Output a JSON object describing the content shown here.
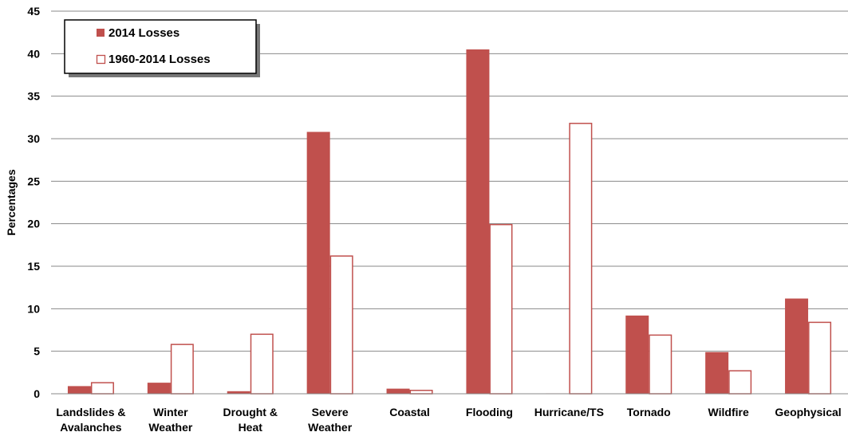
{
  "chart_data": {
    "type": "bar",
    "title": "",
    "xlabel": "",
    "ylabel": "Percentages",
    "ylim": [
      0,
      45
    ],
    "yticks": [
      0,
      5,
      10,
      15,
      20,
      25,
      30,
      35,
      40,
      45
    ],
    "grid": true,
    "legend_position": "top-left",
    "categories": [
      [
        "Landslides &",
        "Avalanches"
      ],
      [
        "Winter",
        "Weather"
      ],
      [
        "Drought &",
        "Heat"
      ],
      [
        "Severe",
        "Weather"
      ],
      [
        "Coastal"
      ],
      [
        "Flooding"
      ],
      [
        "Hurricane/TS"
      ],
      [
        "Tornado"
      ],
      [
        "Wildfire"
      ],
      [
        "Geophysical"
      ]
    ],
    "series": [
      {
        "name": "2014 Losses",
        "color": "#c0504d",
        "fill": "solid",
        "values": [
          0.9,
          1.3,
          0.3,
          30.8,
          0.6,
          40.5,
          0.05,
          9.2,
          4.9,
          11.2
        ]
      },
      {
        "name": "1960-2014 Losses",
        "color": "#c0504d",
        "fill": "hollow",
        "values": [
          1.3,
          5.8,
          7.0,
          16.2,
          0.4,
          19.9,
          31.8,
          6.9,
          2.7,
          8.4
        ]
      }
    ]
  }
}
